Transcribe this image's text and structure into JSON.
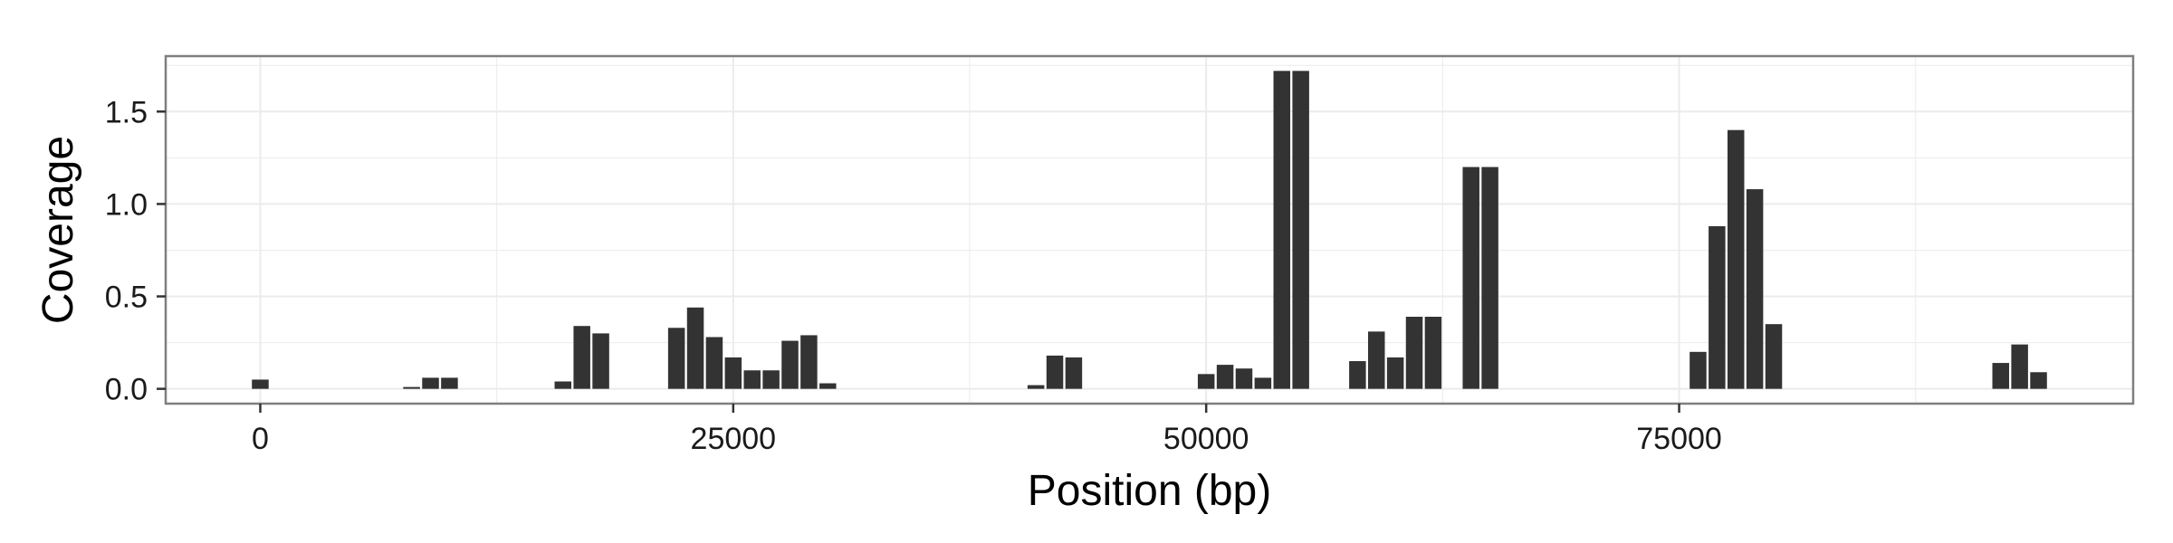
{
  "chart_data": {
    "type": "bar",
    "title": "",
    "xlabel": "Position (bp)",
    "ylabel": "Coverage",
    "xlim": [
      -5000,
      99000
    ],
    "ylim": [
      -0.08,
      1.8
    ],
    "x_ticks": [
      0,
      25000,
      50000,
      75000
    ],
    "x_tick_labels": [
      "0",
      "25000",
      "50000",
      "75000"
    ],
    "y_ticks": [
      0.0,
      0.5,
      1.0,
      1.5
    ],
    "y_tick_labels": [
      "0.0",
      "0.5",
      "1.0",
      "1.5"
    ],
    "bin_width": 1000,
    "grid": true,
    "legend": "none",
    "bar_color": "#333333",
    "panel_background": "#ffffff",
    "grid_color": "#ebebeb",
    "border_color": "#7f7f7f",
    "x": [
      0,
      8000,
      9000,
      10000,
      16000,
      17000,
      18000,
      22000,
      23000,
      24000,
      25000,
      26000,
      27000,
      28000,
      29000,
      30000,
      41000,
      42000,
      43000,
      50000,
      51000,
      52000,
      53000,
      54000,
      55000,
      58000,
      59000,
      60000,
      61000,
      62000,
      64000,
      65000,
      76000,
      77000,
      78000,
      79000,
      80000,
      92000,
      93000,
      94000
    ],
    "values": [
      0.05,
      0.01,
      0.06,
      0.06,
      0.04,
      0.34,
      0.3,
      0.33,
      0.44,
      0.28,
      0.17,
      0.1,
      0.1,
      0.26,
      0.29,
      0.03,
      0.02,
      0.18,
      0.17,
      0.08,
      0.13,
      0.11,
      0.06,
      1.72,
      1.72,
      0.15,
      0.31,
      0.17,
      0.39,
      0.39,
      1.2,
      1.2,
      0.2,
      0.88,
      1.4,
      1.08,
      0.35,
      0.14,
      0.24,
      0.09
    ]
  }
}
